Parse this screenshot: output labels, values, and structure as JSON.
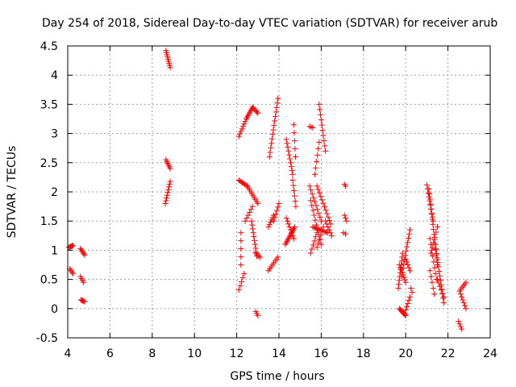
{
  "chart_data": {
    "type": "scatter",
    "title": "Day 254 of 2018, Sidereal Day-to-day VTEC variation (SDTVAR) for receiver arub",
    "xlabel": "GPS time / hours",
    "ylabel": "SDTVAR / TECUs",
    "xlim": [
      4,
      24
    ],
    "ylim": [
      -0.5,
      4.5
    ],
    "xticks": [
      "4",
      "6",
      "8",
      "10",
      "12",
      "14",
      "16",
      "18",
      "20",
      "22",
      "24"
    ],
    "yticks": [
      "-0.5",
      "0",
      "0.5",
      "1",
      "1.5",
      "2",
      "2.5",
      "3",
      "3.5",
      "4",
      "4.5"
    ],
    "grid": true,
    "marker": "+",
    "color": "#ff0000",
    "segments": [
      {
        "x0": 4.05,
        "y0": 1.05,
        "x1": 4.25,
        "y1": 1.08,
        "n": 6
      },
      {
        "x0": 4.1,
        "y0": 0.68,
        "x1": 4.25,
        "y1": 0.6,
        "n": 4
      },
      {
        "x0": 4.6,
        "y0": 1.03,
        "x1": 4.8,
        "y1": 0.92,
        "n": 6
      },
      {
        "x0": 4.6,
        "y0": 0.55,
        "x1": 4.75,
        "y1": 0.45,
        "n": 4
      },
      {
        "x0": 4.62,
        "y0": 0.15,
        "x1": 4.8,
        "y1": 0.12,
        "n": 5
      },
      {
        "x0": 8.65,
        "y0": 4.42,
        "x1": 8.85,
        "y1": 4.13,
        "n": 9
      },
      {
        "x0": 8.65,
        "y0": 2.55,
        "x1": 8.85,
        "y1": 2.4,
        "n": 6
      },
      {
        "x0": 8.62,
        "y0": 1.8,
        "x1": 8.85,
        "y1": 2.18,
        "n": 9
      },
      {
        "x0": 12.1,
        "y0": 2.95,
        "x1": 12.45,
        "y1": 3.25,
        "n": 8
      },
      {
        "x0": 12.45,
        "y0": 3.25,
        "x1": 12.75,
        "y1": 3.45,
        "n": 8
      },
      {
        "x0": 12.75,
        "y0": 3.45,
        "x1": 13.0,
        "y1": 3.35,
        "n": 6
      },
      {
        "x0": 12.1,
        "y0": 2.2,
        "x1": 12.5,
        "y1": 2.1,
        "n": 8
      },
      {
        "x0": 12.5,
        "y0": 2.1,
        "x1": 13.0,
        "y1": 1.8,
        "n": 10
      },
      {
        "x0": 12.4,
        "y0": 1.5,
        "x1": 12.75,
        "y1": 1.75,
        "n": 6
      },
      {
        "x0": 12.7,
        "y0": 1.5,
        "x1": 12.95,
        "y1": 0.9,
        "n": 10
      },
      {
        "x0": 12.9,
        "y0": 0.95,
        "x1": 13.1,
        "y1": 0.88,
        "n": 4
      },
      {
        "x0": 12.2,
        "y0": 1.3,
        "x1": 12.2,
        "y1": 0.75,
        "n": 5
      },
      {
        "x0": 12.1,
        "y0": 0.32,
        "x1": 12.35,
        "y1": 0.6,
        "n": 5
      },
      {
        "x0": 12.9,
        "y0": -0.05,
        "x1": 13.0,
        "y1": -0.12,
        "n": 3
      },
      {
        "x0": 13.55,
        "y0": 2.6,
        "x1": 13.95,
        "y1": 3.6,
        "n": 14
      },
      {
        "x0": 13.5,
        "y0": 1.4,
        "x1": 13.75,
        "y1": 1.6,
        "n": 6
      },
      {
        "x0": 13.75,
        "y0": 1.5,
        "x1": 14.0,
        "y1": 1.8,
        "n": 6
      },
      {
        "x0": 13.5,
        "y0": 0.65,
        "x1": 13.95,
        "y1": 0.88,
        "n": 8
      },
      {
        "x0": 14.35,
        "y0": 2.9,
        "x1": 14.65,
        "y1": 2.3,
        "n": 10
      },
      {
        "x0": 14.3,
        "y0": 1.1,
        "x1": 14.75,
        "y1": 1.4,
        "n": 12
      },
      {
        "x0": 14.35,
        "y0": 1.55,
        "x1": 14.7,
        "y1": 1.2,
        "n": 8
      },
      {
        "x0": 14.7,
        "y0": 3.15,
        "x1": 14.78,
        "y1": 2.6,
        "n": 5
      },
      {
        "x0": 14.65,
        "y0": 2.2,
        "x1": 14.8,
        "y1": 1.75,
        "n": 6
      },
      {
        "x0": 15.45,
        "y0": 3.12,
        "x1": 15.6,
        "y1": 3.1,
        "n": 3
      },
      {
        "x0": 15.45,
        "y0": 2.1,
        "x1": 16.0,
        "y1": 1.5,
        "n": 10
      },
      {
        "x0": 15.5,
        "y0": 1.85,
        "x1": 16.0,
        "y1": 1.1,
        "n": 10
      },
      {
        "x0": 15.5,
        "y0": 0.95,
        "x1": 15.8,
        "y1": 1.3,
        "n": 6
      },
      {
        "x0": 15.6,
        "y0": 1.4,
        "x1": 16.3,
        "y1": 1.3,
        "n": 12
      },
      {
        "x0": 15.8,
        "y0": 1.05,
        "x1": 16.1,
        "y1": 1.4,
        "n": 6
      },
      {
        "x0": 15.9,
        "y0": 3.5,
        "x1": 16.2,
        "y1": 2.7,
        "n": 10
      },
      {
        "x0": 15.7,
        "y0": 2.3,
        "x1": 15.9,
        "y1": 2.85,
        "n": 6
      },
      {
        "x0": 15.8,
        "y0": 2.1,
        "x1": 16.45,
        "y1": 1.45,
        "n": 12
      },
      {
        "x0": 16.2,
        "y0": 1.5,
        "x1": 16.5,
        "y1": 1.25,
        "n": 6
      },
      {
        "x0": 17.1,
        "y0": 2.13,
        "x1": 17.15,
        "y1": 2.1,
        "n": 2
      },
      {
        "x0": 17.1,
        "y0": 1.6,
        "x1": 17.2,
        "y1": 1.5,
        "n": 3
      },
      {
        "x0": 17.05,
        "y0": 1.3,
        "x1": 17.15,
        "y1": 1.28,
        "n": 2
      },
      {
        "x0": 19.65,
        "y0": 0.35,
        "x1": 19.85,
        "y1": 0.95,
        "n": 10
      },
      {
        "x0": 19.8,
        "y0": 0.55,
        "x1": 20.2,
        "y1": 1.35,
        "n": 12
      },
      {
        "x0": 19.7,
        "y0": 0.75,
        "x1": 20.0,
        "y1": 0.45,
        "n": 8
      },
      {
        "x0": 20.0,
        "y0": 0.85,
        "x1": 20.2,
        "y1": 0.65,
        "n": 5
      },
      {
        "x0": 19.7,
        "y0": 0.0,
        "x1": 20.0,
        "y1": -0.12,
        "n": 8
      },
      {
        "x0": 19.95,
        "y0": -0.08,
        "x1": 20.2,
        "y1": 0.2,
        "n": 6
      },
      {
        "x0": 20.25,
        "y0": 0.35,
        "x1": 20.3,
        "y1": 0.28,
        "n": 2
      },
      {
        "x0": 21.0,
        "y0": 2.12,
        "x1": 21.3,
        "y1": 1.5,
        "n": 10
      },
      {
        "x0": 21.1,
        "y0": 2.05,
        "x1": 21.5,
        "y1": 0.75,
        "n": 16
      },
      {
        "x0": 21.15,
        "y0": 1.2,
        "x1": 21.45,
        "y1": 0.5,
        "n": 8
      },
      {
        "x0": 21.2,
        "y0": 0.95,
        "x1": 21.5,
        "y1": 1.4,
        "n": 6
      },
      {
        "x0": 21.4,
        "y0": 1.1,
        "x1": 21.8,
        "y1": 0.1,
        "n": 14
      },
      {
        "x0": 21.5,
        "y0": 0.5,
        "x1": 21.8,
        "y1": 0.2,
        "n": 6
      },
      {
        "x0": 21.15,
        "y0": 0.65,
        "x1": 21.35,
        "y1": 0.25,
        "n": 5
      },
      {
        "x0": 22.55,
        "y0": 0.3,
        "x1": 22.85,
        "y1": 0.45,
        "n": 6
      },
      {
        "x0": 22.6,
        "y0": 0.25,
        "x1": 22.85,
        "y1": 0.0,
        "n": 6
      },
      {
        "x0": 22.5,
        "y0": -0.22,
        "x1": 22.65,
        "y1": -0.35,
        "n": 4
      }
    ]
  }
}
